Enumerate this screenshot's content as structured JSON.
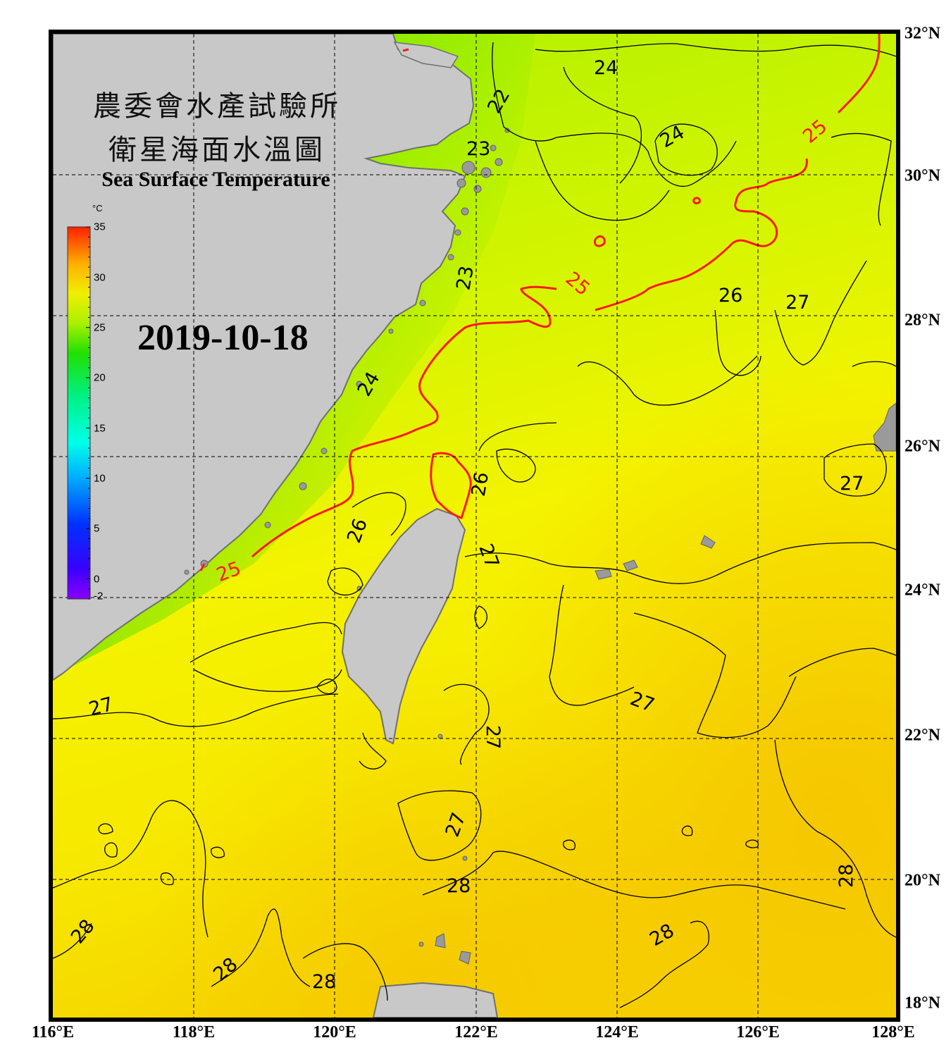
{
  "title": {
    "line1": "農委會水產試驗所",
    "line2": "衛星海面水溫圖",
    "english": "Sea Surface Temperature"
  },
  "date": "2019-10-18",
  "colorbar": {
    "unit": "°C",
    "ticks": [
      "35",
      "30",
      "25",
      "20",
      "15",
      "10",
      "5",
      "0",
      "-2"
    ],
    "min": -2,
    "max": 35
  },
  "axes": {
    "lon_labels": [
      "116°E",
      "118°E",
      "120°E",
      "122°E",
      "124°E",
      "126°E",
      "128°E"
    ],
    "lat_labels": [
      "32°N",
      "30°N",
      "28°N",
      "26°N",
      "24°N",
      "22°N",
      "20°N",
      "18°N"
    ],
    "lon_range": [
      116,
      128
    ],
    "lat_range": [
      18,
      32
    ]
  },
  "colors": {
    "land": "#c8c8c8",
    "land_outline": "#707070",
    "warm_sea": "#f6f200",
    "hot_sea": "#f7c800",
    "cool_sea": "#6ee800",
    "highlight_contour": "#ff1a1a",
    "contour": "#000000"
  },
  "isotherm_labels": {
    "l22": "22",
    "l23a": "23",
    "l23b": "23",
    "l24a": "24",
    "l24b": "24",
    "l24c": "24",
    "l25a": "25",
    "l25b": "25",
    "l25c": "25",
    "l26a": "26",
    "l26b": "26",
    "l26c": "26",
    "l27a": "27",
    "l27b": "27",
    "l27c": "27",
    "l27d": "27",
    "l27e": "27",
    "l27f": "27",
    "l27g": "27",
    "l28a": "28",
    "l28b": "28",
    "l28c": "28",
    "l28d": "28",
    "l28e": "28",
    "l28f": "28"
  }
}
